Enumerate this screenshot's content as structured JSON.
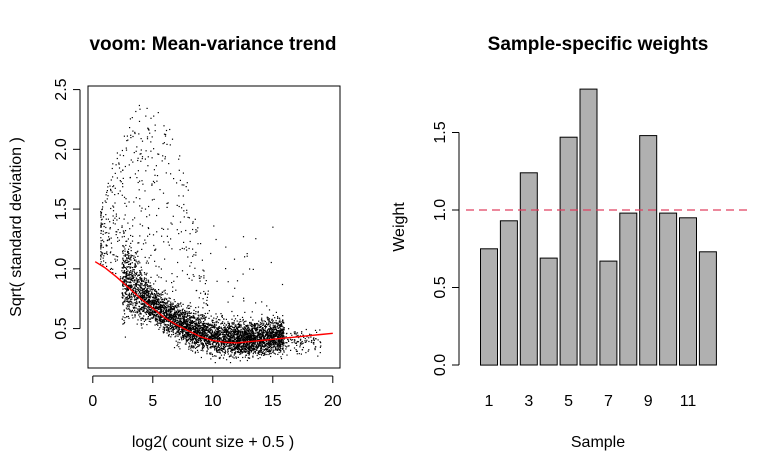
{
  "chart_data": [
    {
      "type": "scatter",
      "title": "voom: Mean-variance trend",
      "xlabel": "log2( count size + 0.5 )",
      "ylabel": "Sqrt( standard deviation )",
      "xlim": [
        -0.4,
        20.6
      ],
      "ylim": [
        0.17,
        2.53
      ],
      "xticks": [
        0,
        5,
        10,
        15,
        20
      ],
      "yticks": [
        0.5,
        1.0,
        1.5,
        2.0,
        2.5
      ],
      "xtick_labels": [
        "0",
        "5",
        "10",
        "15",
        "20"
      ],
      "ytick_labels": [
        "0.5",
        "1.0",
        "1.5",
        "2.0",
        "2.5"
      ],
      "points_color": "#000000",
      "trend": {
        "color": "#ff0000",
        "x": [
          0.2,
          1,
          2,
          3,
          4,
          5,
          6,
          7,
          8,
          9,
          10,
          11,
          12,
          13,
          14,
          15,
          16,
          17,
          18,
          19,
          20
        ],
        "y": [
          1.06,
          1.01,
          0.93,
          0.84,
          0.75,
          0.67,
          0.59,
          0.53,
          0.48,
          0.43,
          0.4,
          0.385,
          0.38,
          0.39,
          0.4,
          0.41,
          0.42,
          0.43,
          0.44,
          0.45,
          0.46
        ]
      },
      "scatter_density": [
        {
          "x_range": [
            0.5,
            3
          ],
          "y_range": [
            1.0,
            2.0
          ],
          "n": 200
        },
        {
          "x_range": [
            2,
            9
          ],
          "y_range": [
            0.35,
            2.4
          ],
          "n": 300
        },
        {
          "x_range": [
            2.5,
            6
          ],
          "y_range": [
            0.45,
            1.0
          ],
          "n": 1200
        },
        {
          "x_range": [
            4,
            14
          ],
          "y_range": [
            0.2,
            0.9
          ],
          "n": 3500
        },
        {
          "x_range": [
            12,
            19
          ],
          "y_range": [
            0.28,
            0.6
          ],
          "n": 500
        }
      ]
    },
    {
      "type": "bar",
      "title": "Sample-specific weights",
      "xlabel": "Sample",
      "ylabel": "Weight",
      "categories": [
        "1",
        "2",
        "3",
        "4",
        "5",
        "6",
        "7",
        "8",
        "9",
        "10",
        "11",
        "12"
      ],
      "values": [
        0.75,
        0.93,
        1.24,
        0.69,
        1.47,
        1.78,
        0.67,
        0.98,
        1.48,
        0.98,
        0.95,
        0.73
      ],
      "shown_xtick_labels": [
        "1",
        "3",
        "5",
        "7",
        "9",
        "11"
      ],
      "ylim": [
        0,
        1.8
      ],
      "yticks": [
        0.0,
        0.5,
        1.0,
        1.5
      ],
      "ytick_labels": [
        "0.0",
        "0.5",
        "1.0",
        "1.5"
      ],
      "reference_line": {
        "y": 1.0,
        "color": "#e04060",
        "style": "dashed"
      },
      "bar_color": "#b0b0b0",
      "bar_border": "#000000"
    }
  ]
}
